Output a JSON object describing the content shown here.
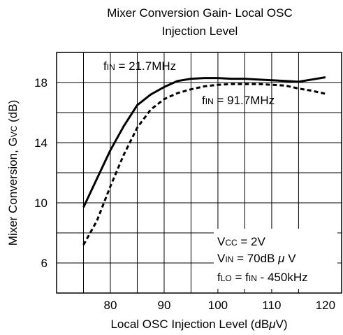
{
  "chart_data": {
    "type": "line",
    "title_line1": "Mixer Conversion Gain- Local OSC",
    "title_line2": "Injection Level",
    "xlabel": "Local OSC Injection Level (dBμV)",
    "ylabel": "Mixer Conversion, Gvc (dB)",
    "xlim": [
      70,
      123
    ],
    "ylim": [
      4,
      20
    ],
    "x_ticks": [
      80,
      90,
      100,
      110,
      120
    ],
    "y_ticks": [
      6,
      10,
      14,
      18
    ],
    "grid": true,
    "series": [
      {
        "name": "fIN = 21.7MHz",
        "style": "solid",
        "color": "#000000",
        "x": [
          75,
          77.5,
          80,
          82.5,
          85,
          87.5,
          90,
          92.5,
          95,
          97.5,
          100,
          102.5,
          105,
          107.5,
          110,
          112.5,
          115,
          117.5,
          120
        ],
        "y": [
          9.7,
          11.6,
          13.5,
          15.1,
          16.5,
          17.2,
          17.7,
          18.1,
          18.25,
          18.3,
          18.3,
          18.25,
          18.25,
          18.2,
          18.15,
          18.1,
          18.05,
          18.2,
          18.35
        ]
      },
      {
        "name": "fIN = 91.7MHz",
        "style": "dashed",
        "color": "#000000",
        "x": [
          75,
          77.5,
          80,
          82.5,
          85,
          87.5,
          90,
          92.5,
          95,
          97.5,
          100,
          102.5,
          105,
          107.5,
          110,
          112.5,
          115,
          117.5,
          120
        ],
        "y": [
          7.2,
          8.8,
          11.1,
          13.2,
          15.0,
          16.2,
          16.9,
          17.3,
          17.55,
          17.75,
          17.85,
          17.9,
          17.9,
          17.9,
          17.85,
          17.8,
          17.6,
          17.45,
          17.25
        ]
      }
    ],
    "annotations": {
      "fin1": "fIN = 21.7MHz",
      "fin2": "fIN = 91.7MHz",
      "vcc": "Vcc = 2V",
      "vin": "VIN = 70dBμV",
      "flo": "fLO = fIN - 450kHz"
    }
  }
}
